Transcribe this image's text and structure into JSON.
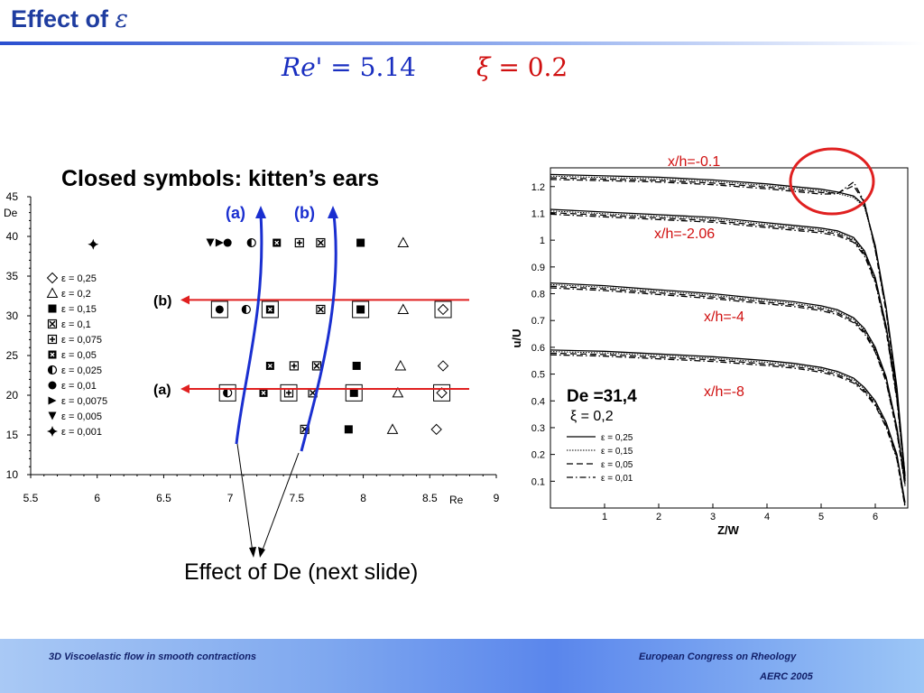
{
  "slide": {
    "title_text": "Effect of",
    "title_symbol": "ε",
    "eq_re_lhs": "Re'",
    "eq_re_rhs": "= 5.14",
    "eq_xi_lhs": "ξ",
    "eq_xi_rhs": "= 0.2",
    "closed_symbols_note": "Closed symbols: kitten’s ears",
    "effect_note": "Effect of De (next slide)"
  },
  "footer": {
    "left": "3D Viscoelastic flow in smooth contractions",
    "right_line1": "European  Congress on Rheology",
    "right_line2": "AERC 2005"
  },
  "colors": {
    "title": "#1f3da0",
    "re_eq": "#1a2fc0",
    "xi_eq": "#d01010",
    "red_arrow": "#e02020",
    "blue_arrow": "#1a2fd0",
    "profile_label": "#d01010"
  },
  "chart_data": [
    {
      "type": "scatter",
      "xlabel": "Re",
      "ylabel": "De",
      "xlim": [
        5.5,
        9
      ],
      "ylim": [
        10,
        45
      ],
      "x_ticks": [
        "5.5",
        "6",
        "6.5",
        "7",
        "7.5",
        "8",
        "8.5",
        "9"
      ],
      "y_ticks": [
        "10",
        "15",
        "20",
        "25",
        "30",
        "35",
        "40",
        "45"
      ],
      "legend_position": "left",
      "legend": [
        {
          "label": "ε = 0,25",
          "marker": "diamond-open"
        },
        {
          "label": "ε = 0,2",
          "marker": "triangle-open"
        },
        {
          "label": "ε = 0,15",
          "marker": "square-filled"
        },
        {
          "label": "ε = 0,1",
          "marker": "square-cross"
        },
        {
          "label": "ε = 0,075",
          "marker": "square-plus"
        },
        {
          "label": "ε = 0,05",
          "marker": "square-x"
        },
        {
          "label": "ε = 0,025",
          "marker": "circle-half"
        },
        {
          "label": "ε = 0,01",
          "marker": "circle-filled"
        },
        {
          "label": "ε = 0,0075",
          "marker": "triangle-right-filled"
        },
        {
          "label": "ε = 0,005",
          "marker": "triangle-down-filled"
        },
        {
          "label": "ε = 0,001",
          "marker": "star-filled"
        }
      ],
      "points": [
        {
          "x": 5.97,
          "y": 39.0,
          "marker": "star-filled",
          "boxed": false
        },
        {
          "x": 6.85,
          "y": 39.2,
          "marker": "triangle-down-filled",
          "boxed": false
        },
        {
          "x": 6.92,
          "y": 39.2,
          "marker": "triangle-right-filled",
          "boxed": false
        },
        {
          "x": 6.98,
          "y": 39.2,
          "marker": "circle-filled",
          "boxed": false
        },
        {
          "x": 7.16,
          "y": 39.2,
          "marker": "circle-half",
          "boxed": false
        },
        {
          "x": 7.35,
          "y": 39.2,
          "marker": "square-x",
          "boxed": false
        },
        {
          "x": 7.52,
          "y": 39.2,
          "marker": "square-plus",
          "boxed": false
        },
        {
          "x": 7.68,
          "y": 39.2,
          "marker": "square-cross",
          "boxed": false
        },
        {
          "x": 7.98,
          "y": 39.2,
          "marker": "square-filled",
          "boxed": false
        },
        {
          "x": 8.3,
          "y": 39.2,
          "marker": "triangle-open",
          "boxed": false
        },
        {
          "x": 6.92,
          "y": 30.8,
          "marker": "circle-filled",
          "boxed": true
        },
        {
          "x": 7.12,
          "y": 30.8,
          "marker": "circle-half",
          "boxed": false
        },
        {
          "x": 7.3,
          "y": 30.8,
          "marker": "square-x",
          "boxed": true
        },
        {
          "x": 7.68,
          "y": 30.8,
          "marker": "square-cross",
          "boxed": false
        },
        {
          "x": 7.98,
          "y": 30.8,
          "marker": "square-filled",
          "boxed": true
        },
        {
          "x": 8.3,
          "y": 30.8,
          "marker": "triangle-open",
          "boxed": false
        },
        {
          "x": 8.6,
          "y": 30.8,
          "marker": "diamond-open",
          "boxed": true
        },
        {
          "x": 7.3,
          "y": 23.7,
          "marker": "square-x",
          "boxed": false
        },
        {
          "x": 7.48,
          "y": 23.7,
          "marker": "square-plus",
          "boxed": false
        },
        {
          "x": 7.65,
          "y": 23.7,
          "marker": "square-cross",
          "boxed": false
        },
        {
          "x": 7.95,
          "y": 23.7,
          "marker": "square-filled",
          "boxed": false
        },
        {
          "x": 8.28,
          "y": 23.7,
          "marker": "triangle-open",
          "boxed": false
        },
        {
          "x": 8.6,
          "y": 23.7,
          "marker": "diamond-open",
          "boxed": false
        },
        {
          "x": 6.98,
          "y": 20.3,
          "marker": "circle-half",
          "boxed": true
        },
        {
          "x": 7.25,
          "y": 20.3,
          "marker": "square-x",
          "boxed": false
        },
        {
          "x": 7.44,
          "y": 20.3,
          "marker": "square-plus",
          "boxed": true
        },
        {
          "x": 7.62,
          "y": 20.3,
          "marker": "square-cross",
          "boxed": false
        },
        {
          "x": 7.93,
          "y": 20.3,
          "marker": "square-filled",
          "boxed": true
        },
        {
          "x": 8.26,
          "y": 20.3,
          "marker": "triangle-open",
          "boxed": false
        },
        {
          "x": 8.59,
          "y": 20.3,
          "marker": "diamond-open",
          "boxed": true
        },
        {
          "x": 7.56,
          "y": 15.7,
          "marker": "square-cross",
          "boxed": false
        },
        {
          "x": 7.89,
          "y": 15.7,
          "marker": "square-filled",
          "boxed": false
        },
        {
          "x": 8.22,
          "y": 15.7,
          "marker": "triangle-open",
          "boxed": false
        },
        {
          "x": 8.55,
          "y": 15.7,
          "marker": "diamond-open",
          "boxed": false
        }
      ],
      "annotations": [
        {
          "label": "(a)",
          "y": 20.8
        },
        {
          "label": "(b)",
          "y": 32.0
        }
      ],
      "arrow_labels": [
        "(a)",
        "(b)"
      ]
    },
    {
      "type": "line",
      "xlabel": "Z/W",
      "ylabel": "u/U",
      "xlim": [
        0,
        6.6
      ],
      "ylim": [
        0,
        1.27
      ],
      "x_ticks": [
        "1",
        "2",
        "3",
        "4",
        "5",
        "6"
      ],
      "y_ticks": [
        "0.1",
        "0.2",
        "0.3",
        "0.4",
        "0.5",
        "0.6",
        "0.7",
        "0.8",
        "0.9",
        "1",
        "1.1",
        "1.2"
      ],
      "inset_text": [
        "De =31,4",
        "ξ = 0,2"
      ],
      "legend": [
        "ε = 0,25",
        "ε = 0,15",
        "ε = 0,05",
        "ε = 0,01"
      ],
      "profile_labels": [
        "x/h=-0.1",
        "x/h=-2.06",
        "x/h=-4",
        "x/h=-8"
      ],
      "series": [
        {
          "label": "x/h=-0.1",
          "x": [
            0,
            1,
            2,
            3,
            4,
            4.5,
            5,
            5.3,
            5.6,
            5.8,
            6.0,
            6.2,
            6.4,
            6.55
          ],
          "y": [
            1.245,
            1.24,
            1.235,
            1.225,
            1.21,
            1.2,
            1.19,
            1.18,
            1.165,
            1.13,
            0.98,
            0.75,
            0.45,
            0.12
          ],
          "kitten_ear_peak": {
            "x": 5.6,
            "y": 1.23
          }
        },
        {
          "label": "x/h=-2.06",
          "x": [
            0,
            1,
            2,
            3,
            4,
            4.5,
            5,
            5.3,
            5.6,
            5.8,
            6.0,
            6.2,
            6.4,
            6.55
          ],
          "y": [
            1.115,
            1.105,
            1.095,
            1.085,
            1.065,
            1.055,
            1.045,
            1.035,
            1.01,
            0.96,
            0.86,
            0.68,
            0.42,
            0.12
          ]
        },
        {
          "label": "x/h=-4",
          "x": [
            0,
            1,
            2,
            3,
            4,
            4.5,
            5,
            5.3,
            5.6,
            5.8,
            6.0,
            6.2,
            6.4,
            6.55
          ],
          "y": [
            0.84,
            0.83,
            0.815,
            0.8,
            0.78,
            0.77,
            0.755,
            0.74,
            0.71,
            0.67,
            0.6,
            0.49,
            0.3,
            0.1
          ]
        },
        {
          "label": "x/h=-8",
          "x": [
            0,
            1,
            2,
            3,
            4,
            4.5,
            5,
            5.3,
            5.6,
            5.8,
            6.0,
            6.2,
            6.4,
            6.55
          ],
          "y": [
            0.59,
            0.585,
            0.575,
            0.565,
            0.55,
            0.54,
            0.525,
            0.51,
            0.485,
            0.45,
            0.4,
            0.32,
            0.2,
            0.02
          ]
        }
      ]
    }
  ]
}
